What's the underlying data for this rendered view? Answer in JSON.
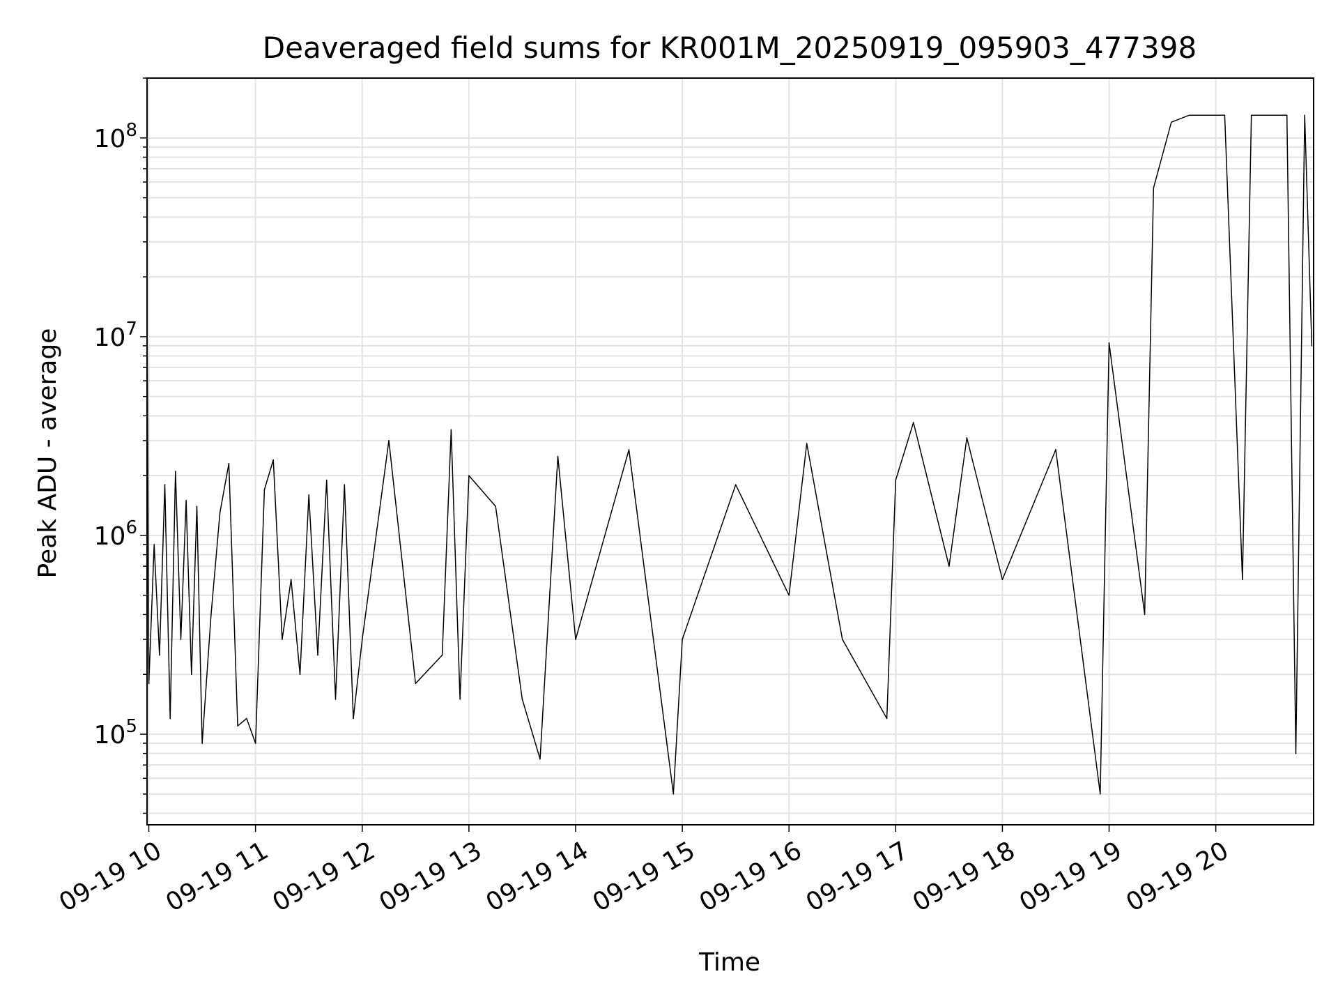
{
  "chart_data": {
    "type": "line",
    "title": "Deaveraged field sums for KR001M_20250919_095903_477398",
    "xlabel": "Time",
    "ylabel": "Peak ADU - average",
    "yscale": "log",
    "ylim": [
      35000,
      200000000
    ],
    "xlim": [
      "2025-09-19 09:59",
      "2025-09-19 20:55"
    ],
    "grid": true,
    "line_color": "#000000",
    "grid_color": "#e3e3e3",
    "x_ticks": [
      {
        "value": "2025-09-19 10:00",
        "label": "09-19 10"
      },
      {
        "value": "2025-09-19 11:00",
        "label": "09-19 11"
      },
      {
        "value": "2025-09-19 12:00",
        "label": "09-19 12"
      },
      {
        "value": "2025-09-19 13:00",
        "label": "09-19 13"
      },
      {
        "value": "2025-09-19 14:00",
        "label": "09-19 14"
      },
      {
        "value": "2025-09-19 15:00",
        "label": "09-19 15"
      },
      {
        "value": "2025-09-19 16:00",
        "label": "09-19 16"
      },
      {
        "value": "2025-09-19 17:00",
        "label": "09-19 17"
      },
      {
        "value": "2025-09-19 18:00",
        "label": "09-19 18"
      },
      {
        "value": "2025-09-19 19:00",
        "label": "09-19 19"
      },
      {
        "value": "2025-09-19 20:00",
        "label": "09-19 20"
      }
    ],
    "y_ticks": [
      {
        "value": 100000,
        "label": "10",
        "exp": "5"
      },
      {
        "value": 1000000,
        "label": "10",
        "exp": "6"
      },
      {
        "value": 10000000,
        "label": "10",
        "exp": "7"
      },
      {
        "value": 100000000,
        "label": "10",
        "exp": "8"
      }
    ],
    "series": [
      {
        "points": [
          [
            "2025-09-19 09:59",
            16000000
          ],
          [
            "2025-09-19 10:00",
            180000
          ],
          [
            "2025-09-19 10:03",
            900000
          ],
          [
            "2025-09-19 10:06",
            250000
          ],
          [
            "2025-09-19 10:09",
            1800000
          ],
          [
            "2025-09-19 10:12",
            120000
          ],
          [
            "2025-09-19 10:15",
            2100000
          ],
          [
            "2025-09-19 10:18",
            300000
          ],
          [
            "2025-09-19 10:21",
            1500000
          ],
          [
            "2025-09-19 10:24",
            200000
          ],
          [
            "2025-09-19 10:27",
            1400000
          ],
          [
            "2025-09-19 10:30",
            90000
          ],
          [
            "2025-09-19 10:35",
            400000
          ],
          [
            "2025-09-19 10:40",
            1300000
          ],
          [
            "2025-09-19 10:45",
            2300000
          ],
          [
            "2025-09-19 10:50",
            110000
          ],
          [
            "2025-09-19 10:55",
            120000
          ],
          [
            "2025-09-19 11:00",
            90000
          ],
          [
            "2025-09-19 11:05",
            1700000
          ],
          [
            "2025-09-19 11:10",
            2400000
          ],
          [
            "2025-09-19 11:15",
            300000
          ],
          [
            "2025-09-19 11:20",
            600000
          ],
          [
            "2025-09-19 11:25",
            200000
          ],
          [
            "2025-09-19 11:30",
            1600000
          ],
          [
            "2025-09-19 11:35",
            250000
          ],
          [
            "2025-09-19 11:40",
            1900000
          ],
          [
            "2025-09-19 11:45",
            150000
          ],
          [
            "2025-09-19 11:50",
            1800000
          ],
          [
            "2025-09-19 11:55",
            120000
          ],
          [
            "2025-09-19 12:00",
            300000
          ],
          [
            "2025-09-19 12:15",
            3000000
          ],
          [
            "2025-09-19 12:30",
            180000
          ],
          [
            "2025-09-19 12:45",
            250000
          ],
          [
            "2025-09-19 12:50",
            3400000
          ],
          [
            "2025-09-19 12:55",
            150000
          ],
          [
            "2025-09-19 13:00",
            2000000
          ],
          [
            "2025-09-19 13:15",
            1400000
          ],
          [
            "2025-09-19 13:30",
            150000
          ],
          [
            "2025-09-19 13:40",
            75000
          ],
          [
            "2025-09-19 13:50",
            2500000
          ],
          [
            "2025-09-19 14:00",
            300000
          ],
          [
            "2025-09-19 14:30",
            2700000
          ],
          [
            "2025-09-19 14:55",
            50000
          ],
          [
            "2025-09-19 15:00",
            300000
          ],
          [
            "2025-09-19 15:30",
            1800000
          ],
          [
            "2025-09-19 16:00",
            500000
          ],
          [
            "2025-09-19 16:10",
            2900000
          ],
          [
            "2025-09-19 16:30",
            300000
          ],
          [
            "2025-09-19 16:55",
            120000
          ],
          [
            "2025-09-19 17:00",
            1900000
          ],
          [
            "2025-09-19 17:10",
            3700000
          ],
          [
            "2025-09-19 17:30",
            700000
          ],
          [
            "2025-09-19 17:40",
            3100000
          ],
          [
            "2025-09-19 18:00",
            600000
          ],
          [
            "2025-09-19 18:30",
            2700000
          ],
          [
            "2025-09-19 18:55",
            50000
          ],
          [
            "2025-09-19 19:00",
            9300000
          ],
          [
            "2025-09-19 19:20",
            400000
          ],
          [
            "2025-09-19 19:25",
            56000000
          ],
          [
            "2025-09-19 19:35",
            120000000
          ],
          [
            "2025-09-19 19:45",
            130000000
          ],
          [
            "2025-09-19 19:55",
            130000000
          ],
          [
            "2025-09-19 20:05",
            130000000
          ],
          [
            "2025-09-19 20:15",
            600000
          ],
          [
            "2025-09-19 20:20",
            130000000
          ],
          [
            "2025-09-19 20:30",
            130000000
          ],
          [
            "2025-09-19 20:40",
            130000000
          ],
          [
            "2025-09-19 20:45",
            80000
          ],
          [
            "2025-09-19 20:50",
            130000000
          ],
          [
            "2025-09-19 20:54",
            9000000
          ]
        ]
      }
    ]
  }
}
